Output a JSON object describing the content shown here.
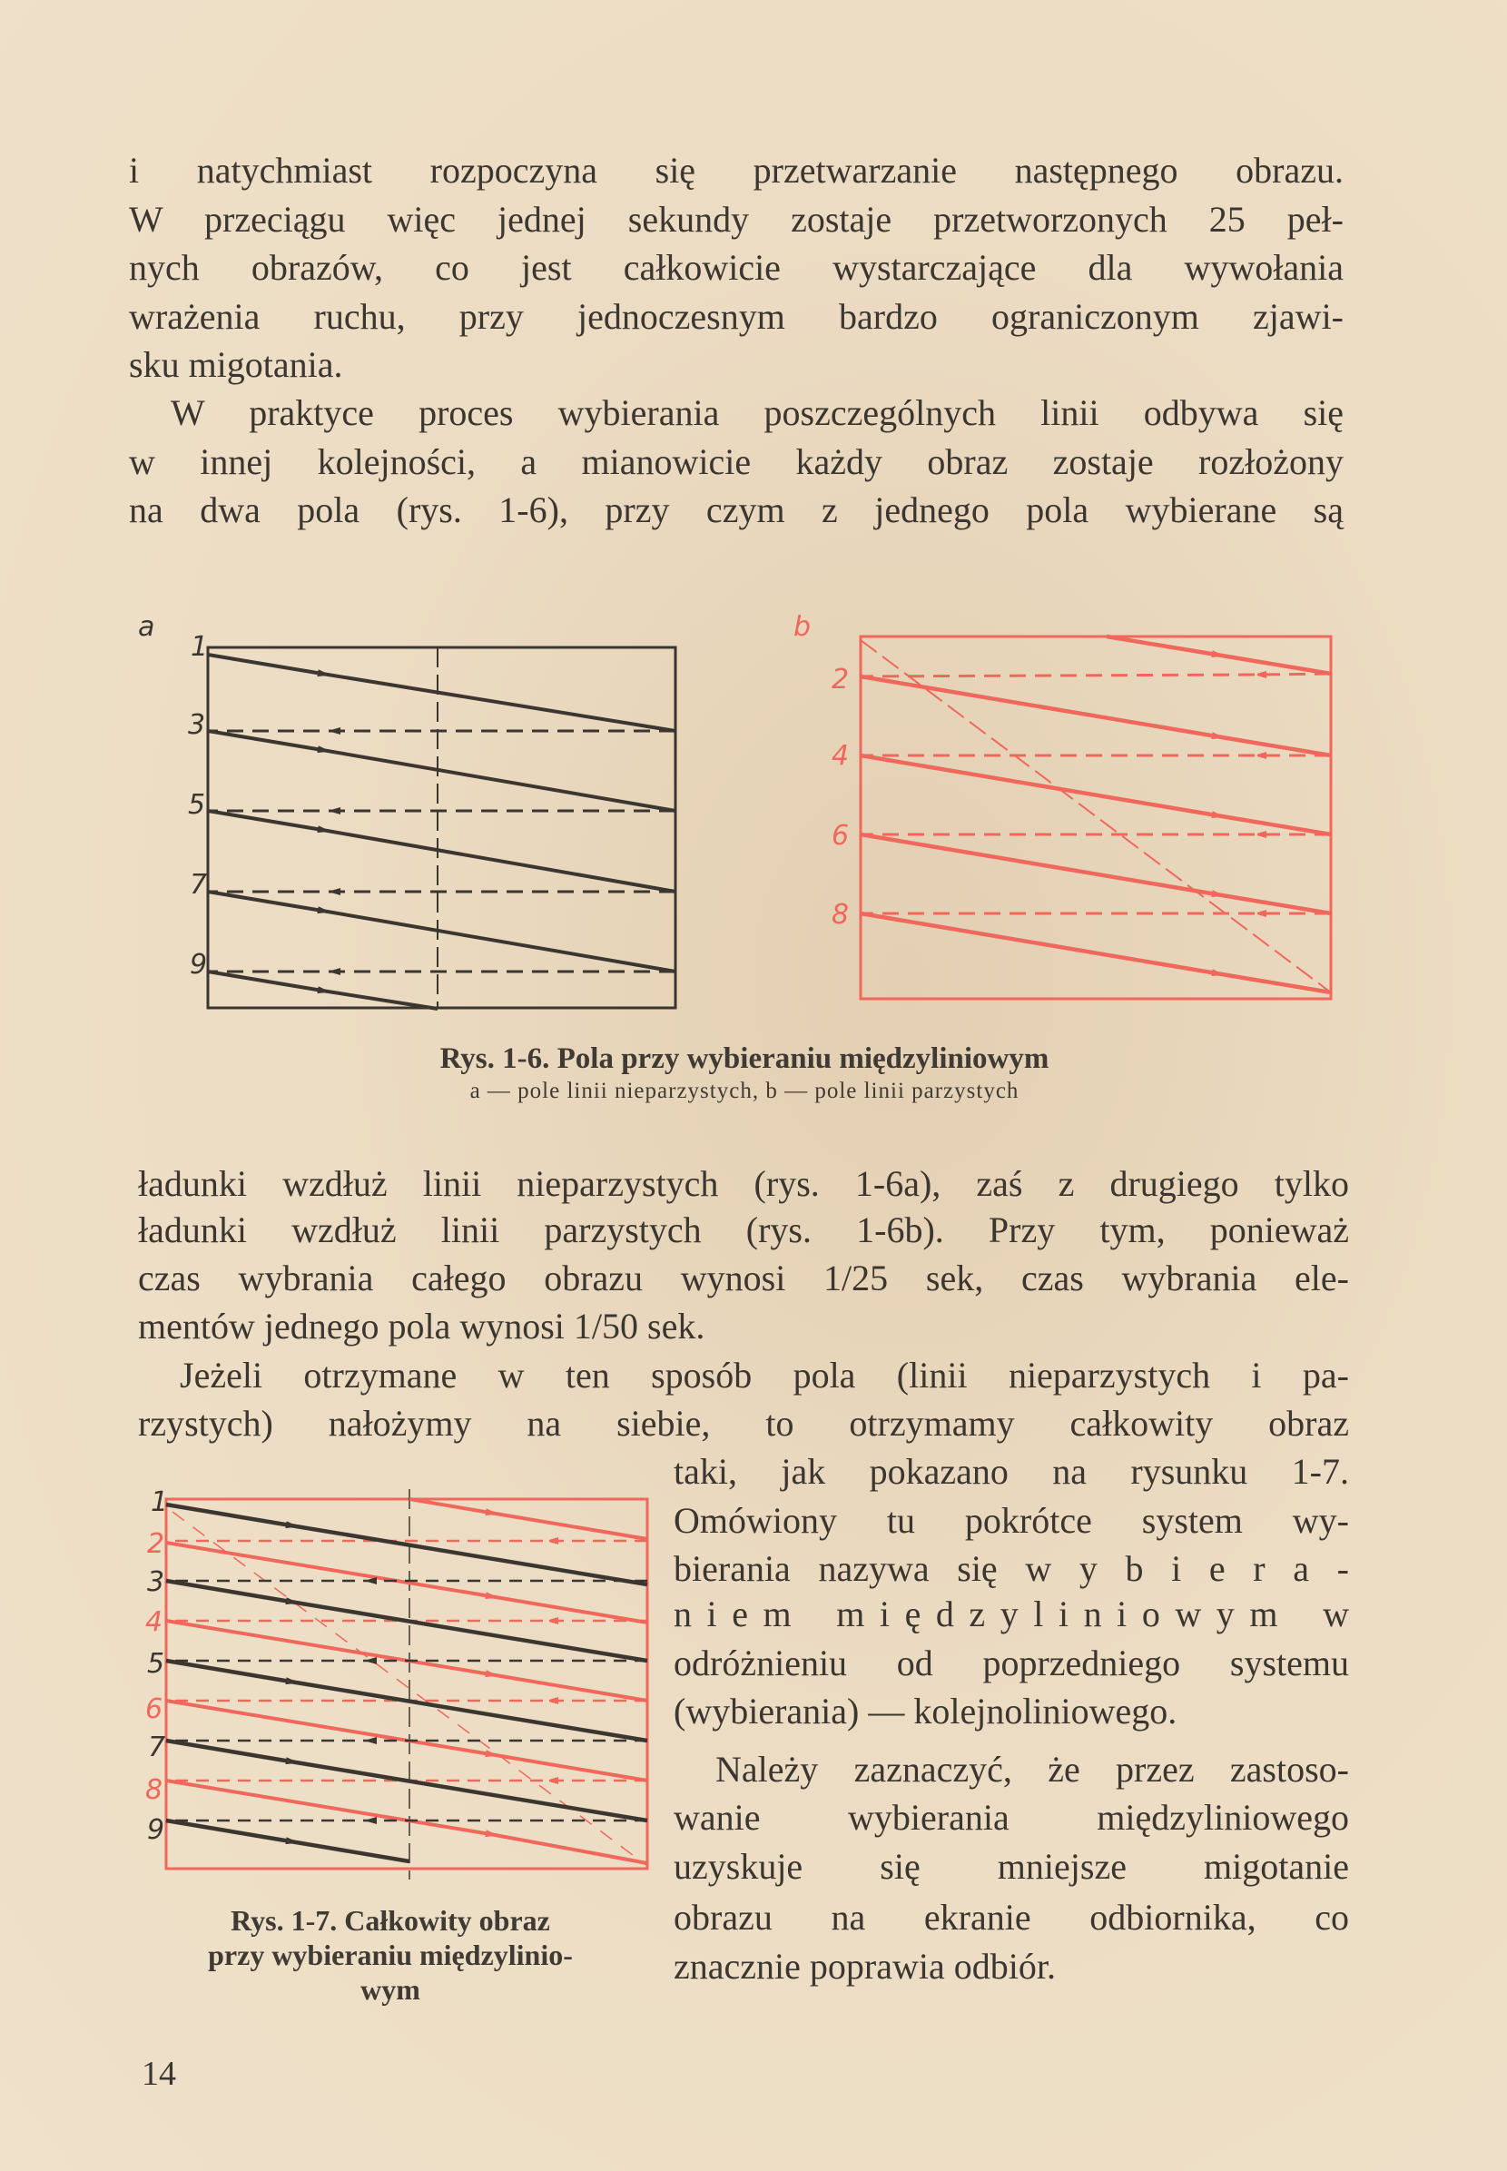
{
  "paragraphs": {
    "p1": [
      "i natychmiast rozpoczyna się przetwarzanie następnego obrazu.",
      "W przeciągu więc jednej sekundy zostaje przetworzonych 25 peł-",
      "nych obrazów, co jest całkowicie wystarczające dla wywołania",
      "wrażenia ruchu, przy jednoczesnym bardzo ograniczonym zjawi-",
      "sku migotania."
    ],
    "p2": [
      "W praktyce proces wybierania poszczególnych linii odbywa się",
      "w innej kolejności, a mianowicie każdy obraz zostaje rozłożony",
      "na dwa pola (rys. 1-6), przy czym z jednego pola wybierane są"
    ],
    "p3": [
      "ładunki wzdłuż linii nieparzystych (rys. 1-6a), zaś z drugiego tylko",
      "ładunki wzdłuż linii parzystych (rys. 1-6b). Przy tym, ponieważ",
      "czas wybrania całego obrazu wynosi 1/25 sek, czas wybrania ele-",
      "mentów jednego pola wynosi 1/50 sek."
    ],
    "p4": [
      "Jeżeli otrzymane w ten sposób pola (linii nieparzystych i pa-",
      "rzystych) nałożymy na siebie, to otrzymamy całkowity obraz",
      "taki, jak pokazano na rysunku 1-7.",
      "Omówiony tu pokrótce system wy-",
      "bierania nazywa się w y b i e r a -",
      "n i e m   m i ę d z y l i n i o w y m   w",
      "odróżnieniu od poprzedniego systemu",
      "(wybierania) — kolejnoliniowego."
    ],
    "p5": [
      "Należy zaznaczyć, że przez zastoso-",
      "wanie wybierania międzyliniowego",
      "uzyskuje się mniejsze migotanie",
      "obrazu na ekranie odbiornika, co",
      "znacznie poprawia odbiór."
    ]
  },
  "figure_1_6": {
    "panel_a_label": "a",
    "panel_b_label": "b",
    "odd_lines": [
      "1",
      "3",
      "5",
      "7",
      "9"
    ],
    "even_lines": [
      "2",
      "4",
      "6",
      "8"
    ],
    "caption": "Rys. 1-6. Pola przy wybieraniu międzyliniowym",
    "subcaption": "a — pole linii nieparzystych, b — pole linii parzystych"
  },
  "figure_1_7": {
    "line_numbers": [
      "1",
      "2",
      "3",
      "4",
      "5",
      "6",
      "7",
      "8",
      "9"
    ],
    "caption": [
      "Rys. 1-7. Całkowity obraz",
      "przy wybieraniu międzylinio-",
      "wym"
    ]
  },
  "page_number": "14",
  "colors": {
    "text": "#3b3630",
    "red": "#f0675c",
    "paper": "#ead9bf"
  }
}
